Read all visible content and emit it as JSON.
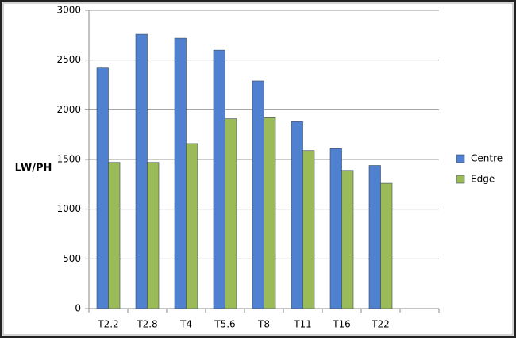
{
  "chart_data": {
    "type": "bar",
    "y_label": "LW/PH",
    "categories": [
      "T2.2",
      "T2.8",
      "T4",
      "T5.6",
      "T8",
      "T11",
      "T16",
      "T22",
      null
    ],
    "series": [
      {
        "name": "Centre",
        "color": "#4f81d0",
        "values": [
          2420,
          2760,
          2720,
          2600,
          2290,
          1880,
          1610,
          1440,
          null
        ]
      },
      {
        "name": "Edge",
        "color": "#9bbb59",
        "values": [
          1470,
          1470,
          1660,
          1910,
          1920,
          1590,
          1390,
          1260,
          null
        ]
      }
    ],
    "ylim": [
      0,
      3000
    ],
    "yticks": [
      0,
      500,
      1000,
      1500,
      2000,
      2500,
      3000
    ],
    "grid": true,
    "legend": "right"
  }
}
